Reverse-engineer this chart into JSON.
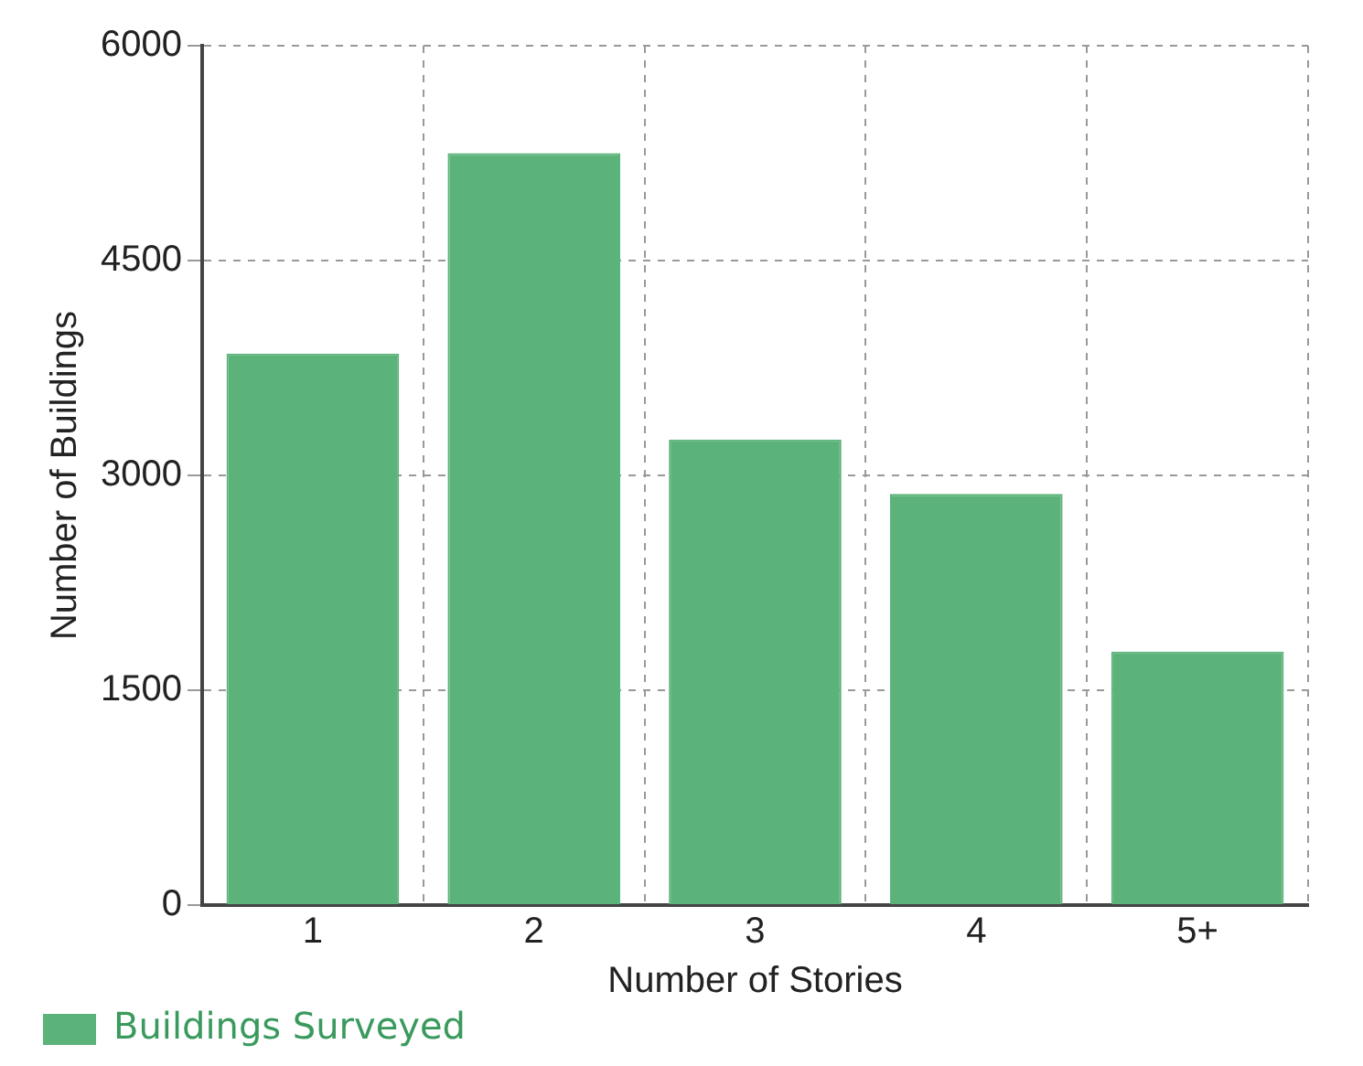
{
  "chart_data": {
    "type": "bar",
    "xlabel": "Number of Stories",
    "ylabel": "Number of Buildings",
    "categories": [
      "1",
      "2",
      "3",
      "4",
      "5+"
    ],
    "series": [
      {
        "name": "Buildings Surveyed",
        "color": "#5bb37a",
        "values": [
          3850,
          5250,
          3250,
          2870,
          1770
        ]
      }
    ],
    "ylim": [
      0,
      6000
    ],
    "yticks": [
      0,
      1500,
      3000,
      4500,
      6000
    ],
    "grid": true,
    "legend": "bottom"
  }
}
